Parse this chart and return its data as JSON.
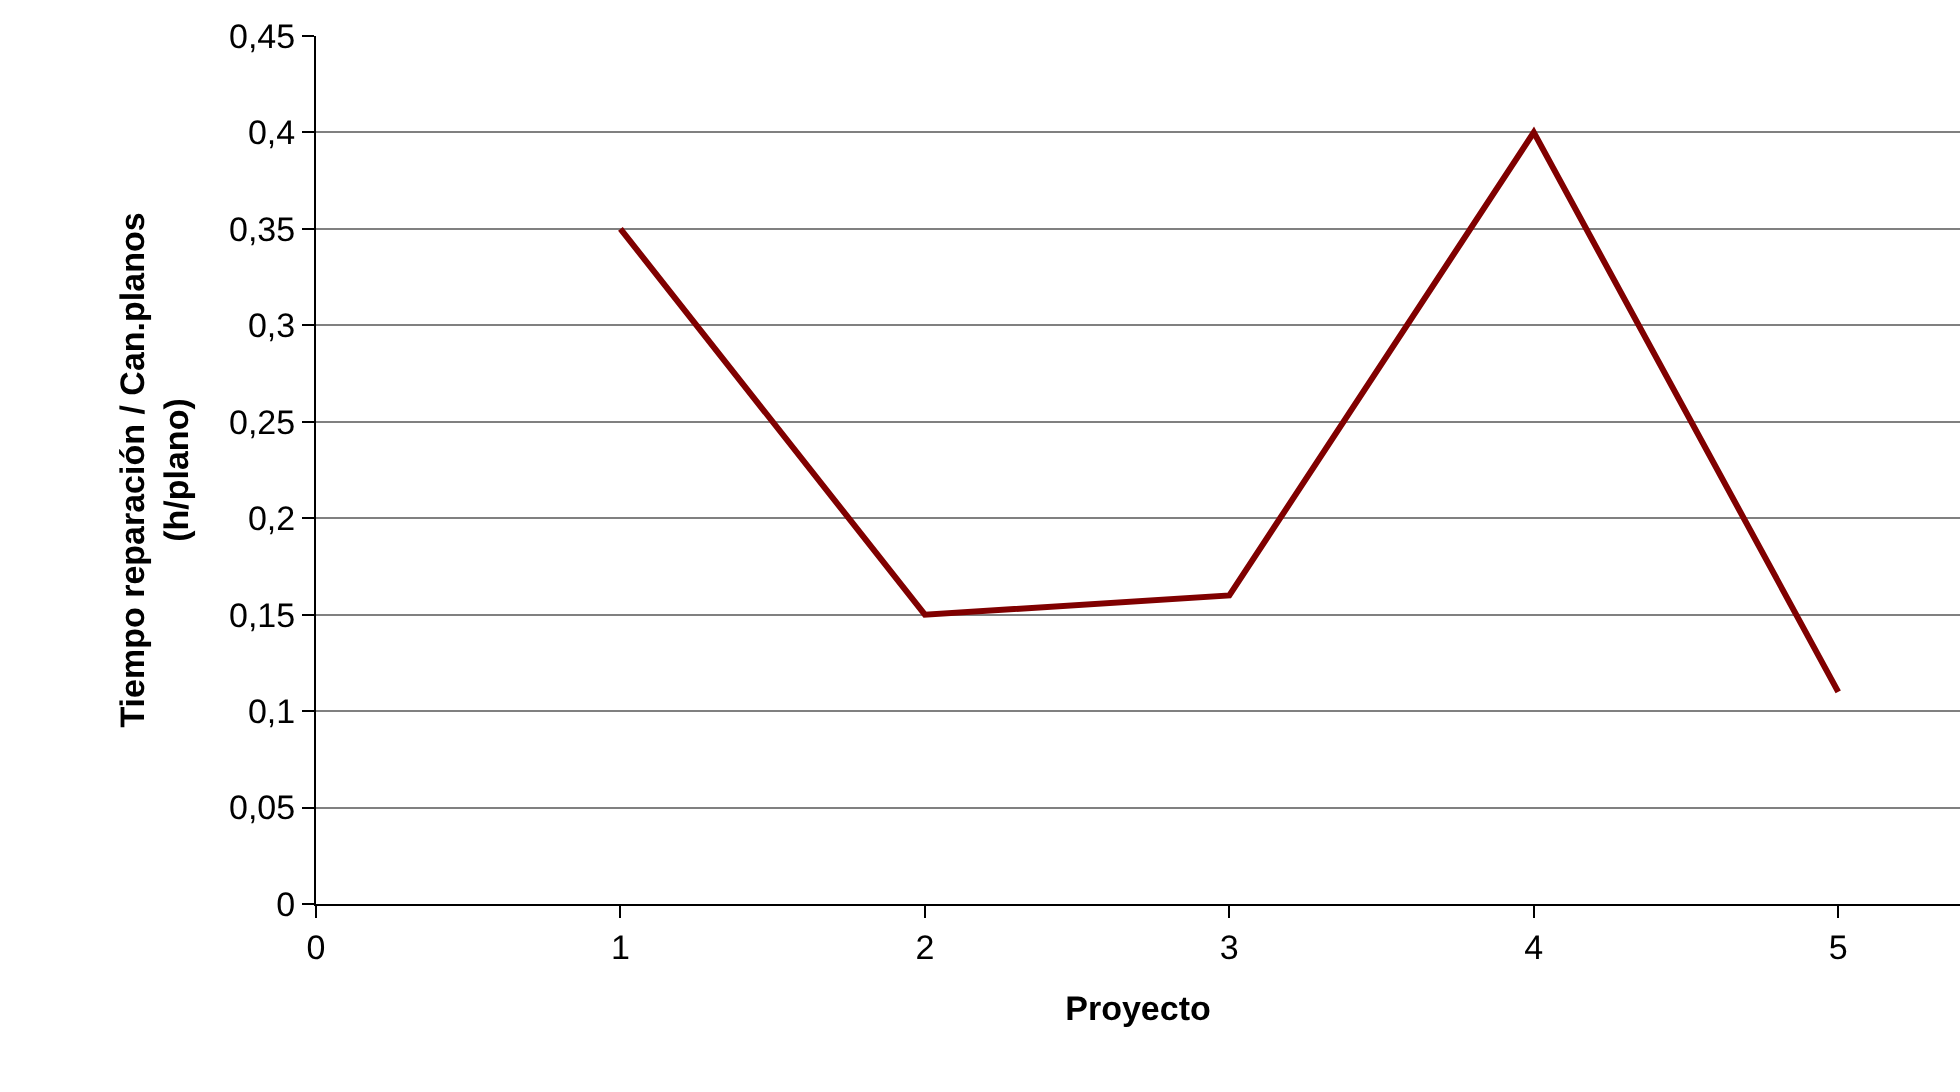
{
  "chart_data": {
    "type": "line",
    "xlabel": "Proyecto",
    "ylabel": "Tiempo reparación / Can.planos\n(h/plano)",
    "x": [
      1,
      2,
      3,
      4,
      5
    ],
    "series": [
      {
        "color": "#800000",
        "values": [
          0.35,
          0.15,
          0.16,
          0.4,
          0.11
        ]
      }
    ],
    "xlim": [
      0,
      5.4
    ],
    "xticks": [
      0,
      1,
      2,
      3,
      4,
      5
    ],
    "ylim": [
      0,
      0.45
    ],
    "yticks": [
      {
        "value": 0,
        "label": "0"
      },
      {
        "value": 0.05,
        "label": "0,05"
      },
      {
        "value": 0.1,
        "label": "0,1"
      },
      {
        "value": 0.15,
        "label": "0,15"
      },
      {
        "value": 0.2,
        "label": "0,2"
      },
      {
        "value": 0.25,
        "label": "0,25"
      },
      {
        "value": 0.3,
        "label": "0,3"
      },
      {
        "value": 0.35,
        "label": "0,35"
      },
      {
        "value": 0.4,
        "label": "0,4"
      },
      {
        "value": 0.45,
        "label": "0,45"
      }
    ],
    "grid": "y",
    "legend": false,
    "marker": "none",
    "line_style": "solid"
  }
}
